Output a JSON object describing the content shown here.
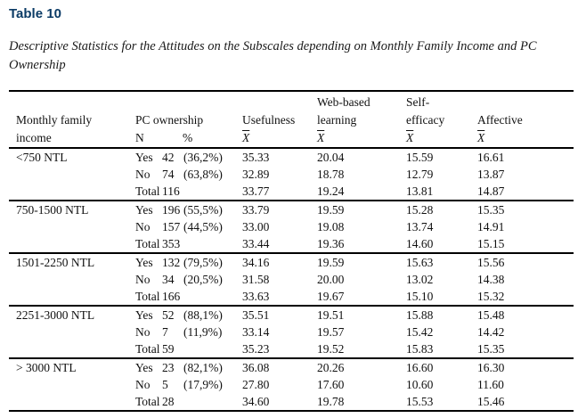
{
  "doc": {
    "table_label": "Table 10",
    "caption": "Descriptive Statistics for the Attitudes on the Subscales depending on Monthly Family Income and PC Ownership",
    "accent_color": "#0b3b66",
    "rule_color": "#000000"
  },
  "table": {
    "header": {
      "col_income": {
        "line1": "Monthly family",
        "line2": "income"
      },
      "col_pc": {
        "title": "PC ownership",
        "n": "N",
        "pct": "%"
      },
      "col_usefulness": {
        "title": "Usefulness",
        "mean": "X"
      },
      "col_web": {
        "line1": "Web-based",
        "line2": "learning",
        "mean": "X"
      },
      "col_self": {
        "line1": "Self-",
        "line2": "efficacy",
        "mean": "X"
      },
      "col_affective": {
        "title": "Affective",
        "mean": "X"
      }
    },
    "groups": [
      {
        "income": "<750 NTL",
        "rows": [
          {
            "ownership": "Yes",
            "n": "42",
            "pct": "(36,2%)",
            "usefulness": "35.33",
            "web_based_learning": "20.04",
            "self_efficacy": "15.59",
            "affective": "16.61"
          },
          {
            "ownership": "No",
            "n": "74",
            "pct": "(63,8%)",
            "usefulness": "32.89",
            "web_based_learning": "18.78",
            "self_efficacy": "12.79",
            "affective": "13.87"
          },
          {
            "ownership": "Total",
            "n": "116",
            "pct": "",
            "usefulness": "33.77",
            "web_based_learning": "19.24",
            "self_efficacy": "13.81",
            "affective": "14.87"
          }
        ]
      },
      {
        "income": "750-1500 NTL",
        "rows": [
          {
            "ownership": "Yes",
            "n": "196",
            "pct": "(55,5%)",
            "usefulness": "33.79",
            "web_based_learning": "19.59",
            "self_efficacy": "15.28",
            "affective": "15.35"
          },
          {
            "ownership": "No",
            "n": "157",
            "pct": "(44,5%)",
            "usefulness": "33.00",
            "web_based_learning": "19.08",
            "self_efficacy": "13.74",
            "affective": "14.91"
          },
          {
            "ownership": "Total",
            "n": "353",
            "pct": "",
            "usefulness": "33.44",
            "web_based_learning": "19.36",
            "self_efficacy": "14.60",
            "affective": "15.15"
          }
        ]
      },
      {
        "income": "1501-2250 NTL",
        "rows": [
          {
            "ownership": "Yes",
            "n": "132",
            "pct": "(79,5%)",
            "usefulness": "34.16",
            "web_based_learning": "19.59",
            "self_efficacy": "15.63",
            "affective": "15.56"
          },
          {
            "ownership": "No",
            "n": "34",
            "pct": "(20,5%)",
            "usefulness": "31.58",
            "web_based_learning": "20.00",
            "self_efficacy": "13.02",
            "affective": "14.38"
          },
          {
            "ownership": "Total",
            "n": "166",
            "pct": "",
            "usefulness": "33.63",
            "web_based_learning": "19.67",
            "self_efficacy": "15.10",
            "affective": "15.32"
          }
        ]
      },
      {
        "income": "2251-3000 NTL",
        "rows": [
          {
            "ownership": "Yes",
            "n": "52",
            "pct": "(88,1%)",
            "usefulness": "35.51",
            "web_based_learning": "19.51",
            "self_efficacy": "15.88",
            "affective": "15.48"
          },
          {
            "ownership": "No",
            "n": "7",
            "pct": "(11,9%)",
            "usefulness": "33.14",
            "web_based_learning": "19.57",
            "self_efficacy": "15.42",
            "affective": "14.42"
          },
          {
            "ownership": "Total",
            "n": "59",
            "pct": "",
            "usefulness": "35.23",
            "web_based_learning": "19.52",
            "self_efficacy": "15.83",
            "affective": "15.35"
          }
        ]
      },
      {
        "income": "> 3000 NTL",
        "rows": [
          {
            "ownership": "Yes",
            "n": "23",
            "pct": "(82,1%)",
            "usefulness": "36.08",
            "web_based_learning": "20.26",
            "self_efficacy": "16.60",
            "affective": "16.30"
          },
          {
            "ownership": "No",
            "n": "5",
            "pct": "(17,9%)",
            "usefulness": "27.80",
            "web_based_learning": "17.60",
            "self_efficacy": "10.60",
            "affective": "11.60"
          },
          {
            "ownership": "Total",
            "n": "28",
            "pct": "",
            "usefulness": "34.60",
            "web_based_learning": "19.78",
            "self_efficacy": "15.53",
            "affective": "15.46"
          }
        ]
      }
    ]
  }
}
